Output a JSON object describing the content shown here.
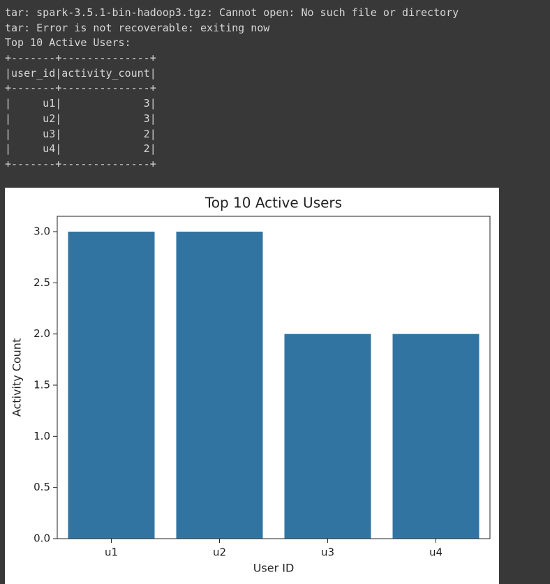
{
  "output": {
    "lines": [
      "tar: spark-3.5.1-bin-hadoop3.tgz: Cannot open: No such file or directory",
      "tar: Error is not recoverable: exiting now",
      "Top 10 Active Users:",
      "+-------+--------------+",
      "|user_id|activity_count|",
      "+-------+--------------+",
      "|     u1|             3|",
      "|     u2|             3|",
      "|     u3|             2|",
      "|     u4|             2|",
      "+-------+--------------+"
    ]
  },
  "chart_data": {
    "type": "bar",
    "title": "Top 10 Active Users",
    "x_label": "User ID",
    "y_label": "Activity Count",
    "categories": [
      "u1",
      "u2",
      "u3",
      "u4"
    ],
    "values": [
      3,
      3,
      2,
      2
    ],
    "color": "#3274a1",
    "ylim": [
      0,
      3.15
    ],
    "yticks": [
      {
        "value": 0,
        "label": "0.0"
      },
      {
        "value": 0.5,
        "label": "0.5"
      },
      {
        "value": 1,
        "label": "1.0"
      },
      {
        "value": 1.5,
        "label": "1.5"
      },
      {
        "value": 2,
        "label": "2.0"
      },
      {
        "value": 2.5,
        "label": "2.5"
      },
      {
        "value": 3,
        "label": "3.0"
      }
    ],
    "grid": false
  }
}
